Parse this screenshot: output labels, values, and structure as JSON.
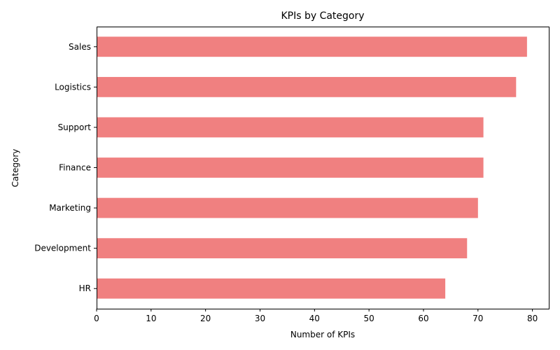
{
  "chart_data": {
    "type": "bar",
    "orientation": "horizontal",
    "title": "KPIs by Category",
    "xlabel": "Number of KPIs",
    "ylabel": "Category",
    "categories": [
      "HR",
      "Development",
      "Marketing",
      "Finance",
      "Support",
      "Logistics",
      "Sales"
    ],
    "values": [
      64,
      68,
      70,
      71,
      71,
      77,
      79
    ],
    "xlim": [
      0,
      83
    ],
    "xticks": [
      0,
      10,
      20,
      30,
      40,
      50,
      60,
      70,
      80
    ],
    "bar_color": "#f08080",
    "grid": false,
    "legend": "none"
  }
}
